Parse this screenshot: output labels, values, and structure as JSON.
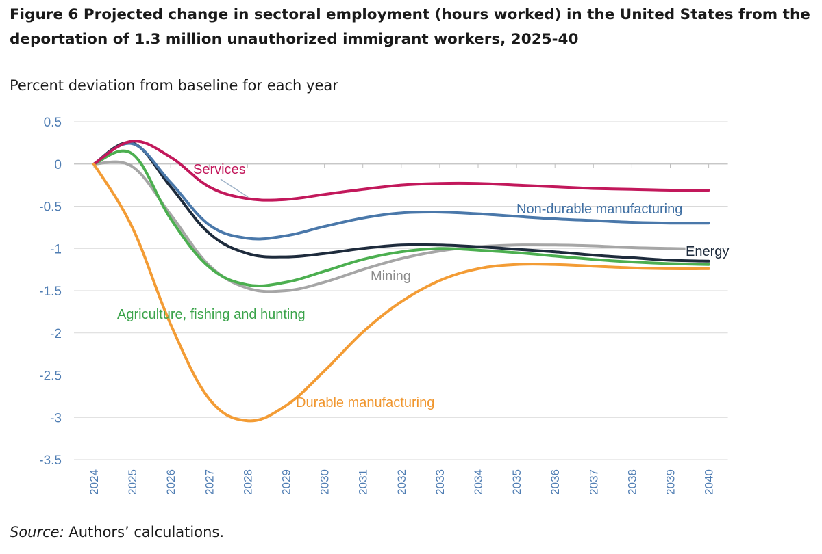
{
  "figure": {
    "title": "Figure 6 Projected change in sectoral employment (hours worked) in the United States from the deportation of 1.3 million unauthorized immigrant workers, 2025-40",
    "subtitle": "Percent deviation from baseline for each year",
    "source_label": "Source:",
    "source_text": " Authors’ calculations."
  },
  "chart_data": {
    "type": "line",
    "title": "Figure 6 Projected change in sectoral employment (hours worked) in the United States from the deportation of 1.3 million unauthorized immigrant workers, 2025-40",
    "ylabel": "Percent deviation from baseline for each year",
    "xlabel": "",
    "x": [
      2024,
      2025,
      2026,
      2027,
      2028,
      2029,
      2030,
      2031,
      2032,
      2033,
      2034,
      2035,
      2036,
      2037,
      2038,
      2039,
      2040
    ],
    "ylim": [
      -3.5,
      0.5
    ],
    "yticks": [
      0.5,
      0,
      -0.5,
      -1,
      -1.5,
      -2,
      -2.5,
      -3,
      -3.5
    ],
    "ytick_labels": [
      "0.5",
      "0",
      "-0.5",
      "-1",
      "-1.5",
      "-2",
      "-2.5",
      "-3",
      "-3.5"
    ],
    "grid": true,
    "legend": "labels placed next to lines",
    "series": [
      {
        "name": "Mining",
        "color": "#a6a6a6",
        "label_color": "#8c8c8c",
        "values": [
          0,
          -0.03,
          -0.6,
          -1.2,
          -1.47,
          -1.5,
          -1.4,
          -1.25,
          -1.12,
          -1.03,
          -0.98,
          -0.96,
          -0.96,
          -0.97,
          -0.99,
          -1.0,
          -1.01
        ]
      },
      {
        "name": "Agriculture, fishing and hunting",
        "color": "#4caf50",
        "label_color": "#3aa34a",
        "values": [
          0,
          0.12,
          -0.65,
          -1.22,
          -1.43,
          -1.4,
          -1.27,
          -1.13,
          -1.04,
          -1.0,
          -1.02,
          -1.05,
          -1.09,
          -1.13,
          -1.16,
          -1.18,
          -1.19
        ]
      },
      {
        "name": "Energy",
        "color": "#1e2b3c",
        "label_color": "#1e2b3c",
        "values": [
          0,
          0.25,
          -0.27,
          -0.82,
          -1.06,
          -1.1,
          -1.06,
          -1.0,
          -0.96,
          -0.96,
          -0.98,
          -1.01,
          -1.04,
          -1.08,
          -1.11,
          -1.14,
          -1.15
        ]
      },
      {
        "name": "Non-durable manufacturing",
        "color": "#4a78aa",
        "label_color": "#3f6fa3",
        "values": [
          0,
          0.24,
          -0.22,
          -0.72,
          -0.88,
          -0.85,
          -0.74,
          -0.64,
          -0.58,
          -0.57,
          -0.59,
          -0.62,
          -0.65,
          -0.67,
          -0.69,
          -0.7,
          -0.7
        ]
      },
      {
        "name": "Services",
        "color": "#c2185b",
        "label_color": "#c2185b",
        "values": [
          0,
          0.27,
          0.08,
          -0.27,
          -0.41,
          -0.42,
          -0.36,
          -0.3,
          -0.25,
          -0.23,
          -0.23,
          -0.25,
          -0.27,
          -0.29,
          -0.3,
          -0.31,
          -0.31
        ]
      },
      {
        "name": "Durable manufacturing",
        "color": "#f39c35",
        "label_color": "#f0962e",
        "values": [
          0,
          -0.75,
          -1.9,
          -2.78,
          -3.04,
          -2.86,
          -2.45,
          -1.99,
          -1.63,
          -1.38,
          -1.24,
          -1.19,
          -1.19,
          -1.21,
          -1.23,
          -1.24,
          -1.24
        ]
      }
    ]
  }
}
